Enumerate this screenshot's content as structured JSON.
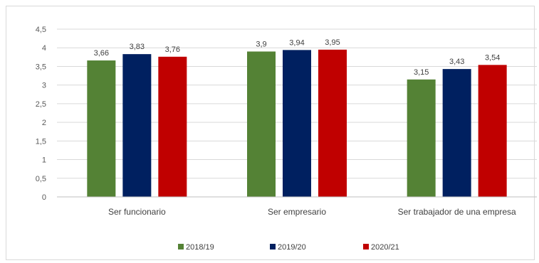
{
  "chart_data": {
    "type": "bar",
    "categories": [
      "Ser funcionario",
      "Ser empresario",
      "Ser trabajador de una empresa"
    ],
    "series": [
      {
        "name": "2018/19",
        "color": "#548235",
        "values": [
          3.66,
          3.9,
          3.15
        ],
        "labels": [
          "3,66",
          "3,9",
          "3,15"
        ]
      },
      {
        "name": "2019/20",
        "color": "#002060",
        "values": [
          3.83,
          3.94,
          3.43
        ],
        "labels": [
          "3,83",
          "3,94",
          "3,43"
        ]
      },
      {
        "name": "2020/21",
        "color": "#c00000",
        "values": [
          3.76,
          3.95,
          3.54
        ],
        "labels": [
          "3,76",
          "3,95",
          "3,54"
        ]
      }
    ],
    "ylim": [
      0,
      4.5
    ],
    "yticks": [
      0,
      0.5,
      1,
      1.5,
      2,
      2.5,
      3,
      3.5,
      4,
      4.5
    ],
    "ytick_labels": [
      "0",
      "0,5",
      "1",
      "1,5",
      "2",
      "2,5",
      "3",
      "3,5",
      "4",
      "4,5"
    ],
    "grid": true,
    "legend": "bottom"
  }
}
